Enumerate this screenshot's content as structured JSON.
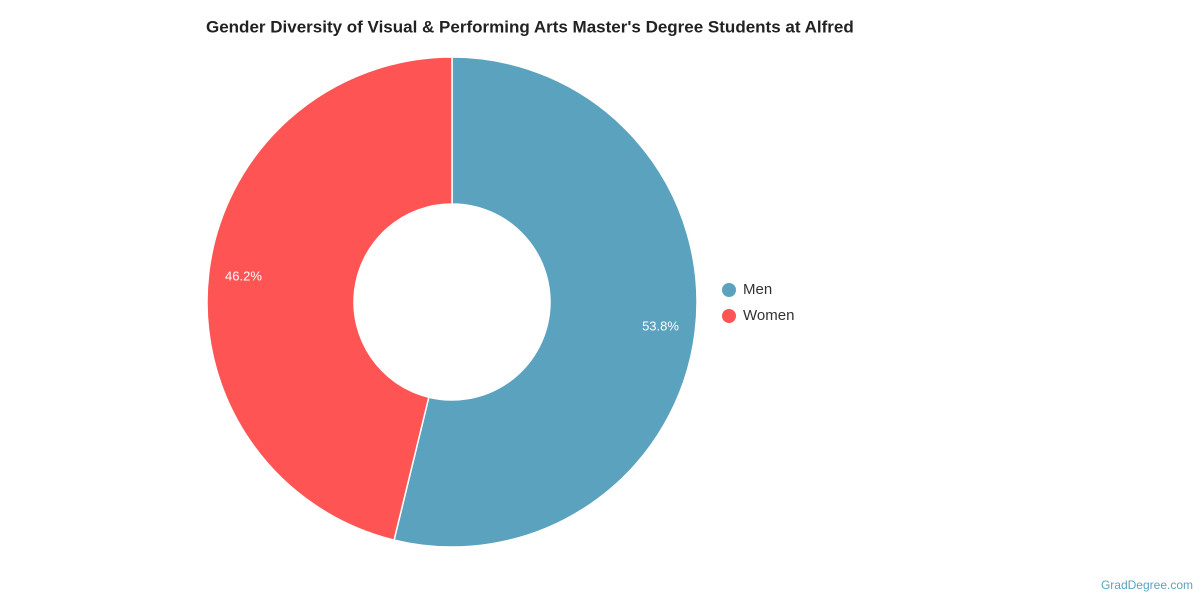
{
  "chart_data": {
    "type": "donut",
    "title": "Gender Diversity of Visual & Performing Arts Master's Degree Students at Alfred",
    "categories": [
      "Men",
      "Women"
    ],
    "values": [
      53.8,
      46.2
    ],
    "value_labels": [
      "53.8%",
      "46.2%"
    ],
    "colors": [
      "#5ba2bf",
      "#ff5454"
    ],
    "legend": "right",
    "source": "GradDegree.com"
  }
}
